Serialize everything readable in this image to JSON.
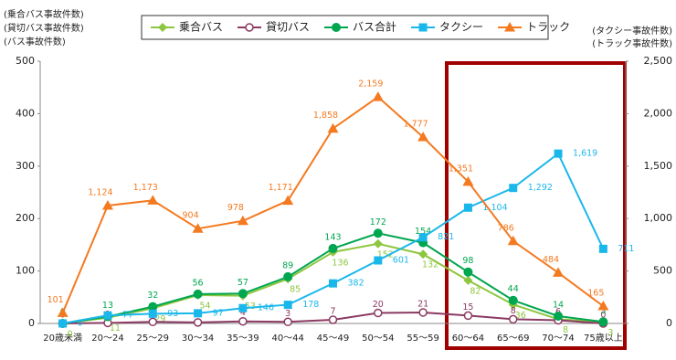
{
  "chart_data": {
    "type": "line",
    "y_axis_labels": [
      "(乗合バス事故件数)",
      "(貸切バス事故件数)",
      "(バス事故件数)"
    ],
    "y2_axis_labels": [
      "(タクシー事故件数)",
      "(トラック事故件数)"
    ],
    "categories": [
      "20歳未満",
      "20～24",
      "25～29",
      "30～34",
      "35～39",
      "40～44",
      "45～49",
      "50～54",
      "55～59",
      "60～64",
      "65～69",
      "70～74",
      "75歳以上"
    ],
    "ylim": [
      0,
      500
    ],
    "yticks": [
      0,
      100,
      200,
      300,
      400,
      500
    ],
    "y2lim": [
      0,
      2500
    ],
    "y2ticks": [
      0,
      500,
      {
        "value": 1000,
        "label": "1,000"
      },
      {
        "value": 1500,
        "label": "1,500"
      },
      {
        "value": 2000,
        "label": "2,000"
      },
      {
        "value": 2500,
        "label": "2,500"
      }
    ],
    "grid": false,
    "series": [
      {
        "name": "乗合バス",
        "color": "#8dc63f",
        "marker": "diamond",
        "values": [
          0,
          11,
          29,
          54,
          53,
          85,
          136,
          152,
          132,
          82,
          36,
          8,
          3
        ]
      },
      {
        "name": "貸切バス",
        "color": "#8b3a62",
        "marker": "hollow-circle",
        "values": [
          0,
          1,
          3,
          2,
          4,
          3,
          7,
          20,
          21,
          15,
          8,
          6,
          0
        ]
      },
      {
        "name": "バス合計",
        "color": "#00a650",
        "marker": "circle",
        "values": [
          0,
          13,
          32,
          56,
          57,
          89,
          143,
          172,
          154,
          98,
          44,
          14,
          3
        ]
      },
      {
        "name": "タクシー",
        "color": "#1ab7ea",
        "marker": "square",
        "axis": "y2",
        "values": [
          0,
          77,
          93,
          97,
          146,
          178,
          382,
          601,
          821,
          1104,
          1292,
          1619,
          711
        ],
        "value_labels": [
          "0",
          "77",
          "93",
          "97",
          "146",
          "178",
          "382",
          "601",
          "821",
          "1,104",
          "1,292",
          "1,619",
          "711"
        ]
      },
      {
        "name": "トラック",
        "color": "#f47a20",
        "marker": "triangle",
        "axis": "y2",
        "values": [
          101,
          1124,
          1173,
          904,
          978,
          1171,
          1858,
          2159,
          1777,
          1351,
          786,
          484,
          165
        ],
        "value_labels": [
          "101",
          "1,124",
          "1,173",
          "904",
          "978",
          "1,171",
          "1,858",
          "2,159",
          "1,777",
          "1,351",
          "786",
          "484",
          "165"
        ]
      }
    ]
  }
}
